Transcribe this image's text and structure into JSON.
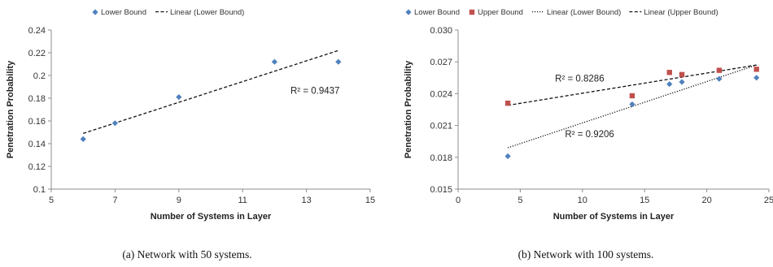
{
  "chart_data": [
    {
      "type": "scatter",
      "caption": "(a)  Network with 50 systems.",
      "xlabel": "Number of Systems in Layer",
      "ylabel": "Penetration Probability",
      "xlim": [
        5,
        15
      ],
      "ylim": [
        0.1,
        0.24
      ],
      "xticks": [
        "5",
        "7",
        "9",
        "11",
        "13",
        "15"
      ],
      "yticks": [
        "0.1",
        "0.12",
        "0.14",
        "0.16",
        "0.18",
        "0.2",
        "0.22",
        "0.24"
      ],
      "grid": false,
      "legend_position": "top",
      "series": [
        {
          "name": "Lower Bound",
          "color": "#4f81bd",
          "marker": "diamond",
          "x": [
            6,
            7,
            9,
            12,
            14
          ],
          "y": [
            0.144,
            0.158,
            0.181,
            0.212,
            0.212
          ]
        }
      ],
      "trendlines": [
        {
          "name": "Linear (Lower Bound)",
          "style": "dashed",
          "x": [
            6,
            14
          ],
          "y": [
            0.149,
            0.222
          ],
          "r2_label": "R² = 0.9437",
          "label_at": [
            12.5,
            0.184
          ]
        }
      ]
    },
    {
      "type": "scatter",
      "caption": "(b)  Network with 100 systems.",
      "xlabel": "Number of Systems in Layer",
      "ylabel": "Penetration Probability",
      "xlim": [
        0,
        25
      ],
      "ylim": [
        0.015,
        0.03
      ],
      "xticks": [
        "0",
        "5",
        "10",
        "15",
        "20",
        "25"
      ],
      "yticks": [
        "0.015",
        "0.018",
        "0.021",
        "0.024",
        "0.027",
        "0.030"
      ],
      "grid": false,
      "legend_position": "top",
      "series": [
        {
          "name": "Lower Bound",
          "color": "#4f81bd",
          "marker": "diamond",
          "x": [
            4,
            14,
            17,
            18,
            21,
            24
          ],
          "y": [
            0.0181,
            0.023,
            0.0249,
            0.0251,
            0.0254,
            0.0255
          ]
        },
        {
          "name": "Upper Bound",
          "color": "#c0504d",
          "marker": "square",
          "x": [
            4,
            14,
            17,
            18,
            21,
            24
          ],
          "y": [
            0.0231,
            0.0238,
            0.026,
            0.0258,
            0.0262,
            0.0263
          ]
        }
      ],
      "trendlines": [
        {
          "name": "Linear (Lower Bound)",
          "style": "dotted",
          "x": [
            4,
            24
          ],
          "y": [
            0.0189,
            0.0267
          ],
          "r2_label": "R² = 0.9206",
          "label_at": [
            8.6,
            0.0199
          ]
        },
        {
          "name": "Linear (Upper Bound)",
          "style": "dashed",
          "x": [
            4,
            24
          ],
          "y": [
            0.0229,
            0.0267
          ],
          "r2_label": "R² = 0.8286",
          "label_at": [
            7.8,
            0.02515
          ]
        }
      ]
    }
  ]
}
